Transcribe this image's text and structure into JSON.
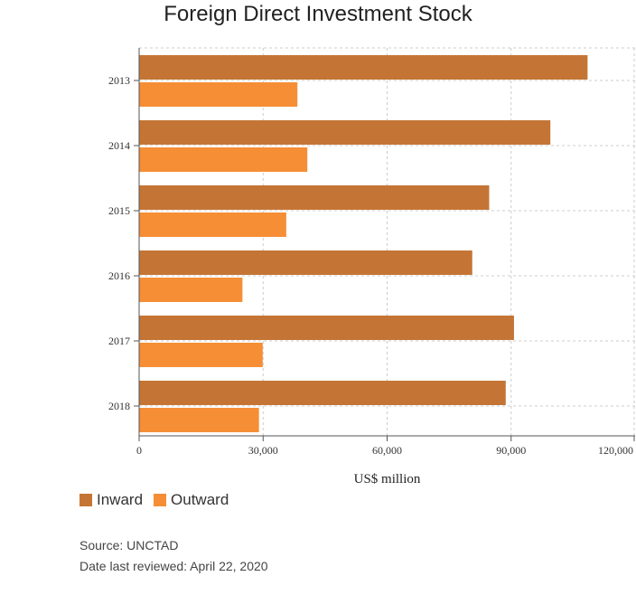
{
  "colors": {
    "inward": "#c47535",
    "outward": "#f68e36",
    "grid": "#cccccc",
    "axis": "#555555"
  },
  "footer": {
    "source": "Source: UNCTAD",
    "reviewed": "Date last reviewed: April 22, 2020"
  },
  "chart_data": {
    "type": "bar",
    "orientation": "horizontal",
    "title": "Foreign Direct Investment Stock",
    "xlabel": "US$ million",
    "ylabel": "",
    "categories": [
      "2013",
      "2014",
      "2015",
      "2016",
      "2017",
      "2018"
    ],
    "series": [
      {
        "name": "Inward",
        "values": [
          108500,
          99500,
          84700,
          80600,
          90700,
          88700
        ]
      },
      {
        "name": "Outward",
        "values": [
          38300,
          40700,
          35600,
          25000,
          29900,
          29000
        ]
      }
    ],
    "xlim": [
      0,
      120000
    ],
    "xticks": [
      "0",
      "30,000",
      "60,000",
      "90,000",
      "120,000"
    ],
    "grid": true,
    "legend_position": "bottom-left"
  }
}
